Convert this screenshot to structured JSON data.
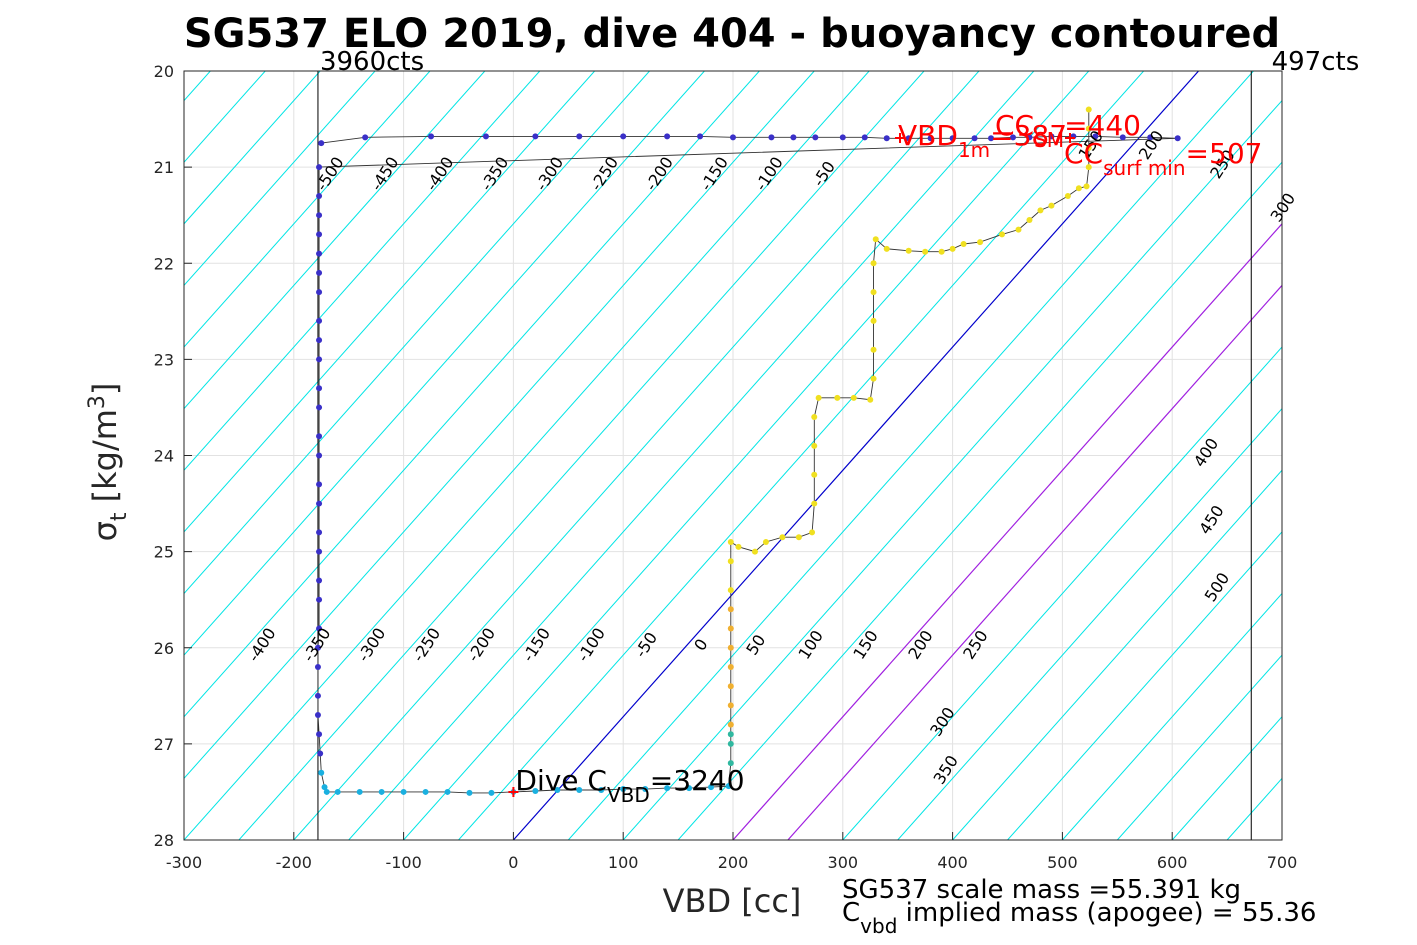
{
  "chart_data": {
    "type": "scatter",
    "title": "SG537 ELO 2019, dive 404 - buoyancy contoured",
    "xlabel": "VBD [cc]",
    "ylabel": {
      "main": "σ",
      "sub": "t",
      "units_pre": "[kg/m",
      "units_sup": "3",
      "units_post": "]"
    },
    "xlim": [
      -300,
      700
    ],
    "ylim": [
      20,
      28
    ],
    "y_reversed": true,
    "grid": true,
    "xticks": [
      "-300",
      "-200",
      "-100",
      "0",
      "100",
      "200",
      "300",
      "400",
      "500",
      "600",
      "700"
    ],
    "yticks": [
      "20",
      "21",
      "22",
      "23",
      "24",
      "25",
      "26",
      "27",
      "28"
    ],
    "contour_spacing": 50,
    "contour_levels_top": [
      "-500",
      "-450",
      "-400",
      "-350",
      "-300",
      "-250",
      "-200",
      "-150",
      "-100",
      "-50",
      "150",
      "200",
      "250",
      "300"
    ],
    "contour_levels_bottom": [
      "-400",
      "-350",
      "-300",
      "-250",
      "-200",
      "-150",
      "-100",
      "-50",
      "0",
      "50",
      "100",
      "150",
      "200",
      "250",
      "300",
      "350"
    ],
    "contour_levels_right": [
      "400",
      "450",
      "500"
    ],
    "vertical_lines": [
      {
        "vbd": -178,
        "label": "3960cts"
      },
      {
        "vbd": 672,
        "label": "497cts"
      }
    ],
    "annotations": {
      "dive_c_vbd": {
        "pre": "Dive C",
        "sub": "VBD",
        "post": "=3240",
        "vbd": 0,
        "sigma": 27.5
      },
      "vbd_1m": {
        "pre": "VBD",
        "sub": "1m",
        "post": "=387"
      },
      "cc_sm": {
        "pre": "CC",
        "sub": "SM",
        "post": "=440"
      },
      "cc_surf_min": {
        "pre": "CC",
        "sub": "surf min",
        "post": "=507"
      }
    },
    "series": [
      {
        "role": "descent",
        "color": "#3a30c8",
        "points": [
          [
            -175,
            20.75
          ],
          [
            -135,
            20.69
          ],
          [
            -75,
            20.68
          ],
          [
            -25,
            20.68
          ],
          [
            20,
            20.68
          ],
          [
            60,
            20.68
          ],
          [
            100,
            20.68
          ],
          [
            140,
            20.68
          ],
          [
            170,
            20.68
          ],
          [
            200,
            20.69
          ],
          [
            235,
            20.69
          ],
          [
            255,
            20.69
          ],
          [
            275,
            20.69
          ],
          [
            300,
            20.69
          ],
          [
            320,
            20.69
          ],
          [
            340,
            20.7
          ],
          [
            360,
            20.7
          ],
          [
            380,
            20.7
          ],
          [
            400,
            20.7
          ],
          [
            420,
            20.7
          ],
          [
            435,
            20.7
          ],
          [
            455,
            20.69
          ],
          [
            470,
            20.69
          ],
          [
            490,
            20.68
          ],
          [
            510,
            20.68
          ],
          [
            530,
            20.68
          ],
          [
            555,
            20.69
          ],
          [
            580,
            20.69
          ],
          [
            605,
            20.7
          ],
          [
            -177,
            21.0
          ],
          [
            -177,
            21.3
          ],
          [
            -177,
            21.5
          ],
          [
            -177,
            21.7
          ],
          [
            -177,
            21.9
          ],
          [
            -177,
            22.1
          ],
          [
            -177,
            22.3
          ],
          [
            -177,
            22.6
          ],
          [
            -177,
            22.8
          ],
          [
            -177,
            23.0
          ],
          [
            -177,
            23.3
          ],
          [
            -177,
            23.5
          ],
          [
            -177,
            23.8
          ],
          [
            -177,
            24.0
          ],
          [
            -177,
            24.3
          ],
          [
            -177,
            24.5
          ],
          [
            -177,
            24.8
          ],
          [
            -177,
            25.0
          ],
          [
            -177,
            25.3
          ],
          [
            -177,
            25.5
          ],
          [
            -177,
            25.8
          ],
          [
            -178,
            26.0
          ],
          [
            -178,
            26.2
          ],
          [
            -178,
            26.5
          ],
          [
            -178,
            26.7
          ],
          [
            -177,
            26.9
          ],
          [
            -176,
            27.1
          ]
        ]
      },
      {
        "role": "bottom",
        "color": "#1ab0e0",
        "points": [
          [
            -175,
            27.3
          ],
          [
            -172,
            27.45
          ],
          [
            -170,
            27.5
          ],
          [
            -160,
            27.5
          ],
          [
            -140,
            27.5
          ],
          [
            -120,
            27.5
          ],
          [
            -100,
            27.5
          ],
          [
            -80,
            27.5
          ],
          [
            -60,
            27.5
          ],
          [
            -40,
            27.51
          ],
          [
            -20,
            27.51
          ],
          [
            0,
            27.5
          ],
          [
            20,
            27.49
          ],
          [
            40,
            27.48
          ],
          [
            60,
            27.48
          ],
          [
            80,
            27.48
          ],
          [
            100,
            27.47
          ],
          [
            120,
            27.47
          ],
          [
            140,
            27.46
          ],
          [
            160,
            27.46
          ],
          [
            180,
            27.45
          ],
          [
            196,
            27.44
          ]
        ]
      },
      {
        "role": "climb-deep",
        "color": "#30b8a0",
        "points": [
          [
            198,
            27.2
          ],
          [
            198,
            27.0
          ],
          [
            198,
            26.9
          ]
        ]
      },
      {
        "role": "climb-mid",
        "color": "#f0b030",
        "points": [
          [
            198,
            26.8
          ],
          [
            198,
            26.6
          ],
          [
            198,
            26.4
          ],
          [
            198,
            26.2
          ],
          [
            198,
            26.0
          ],
          [
            198,
            25.8
          ],
          [
            198,
            25.6
          ]
        ]
      },
      {
        "role": "climb-shallow",
        "color": "#f0e020",
        "points": [
          [
            198,
            25.4
          ],
          [
            198,
            25.1
          ],
          [
            198,
            24.9
          ],
          [
            205,
            24.95
          ],
          [
            220,
            25.0
          ],
          [
            230,
            24.9
          ],
          [
            245,
            24.85
          ],
          [
            260,
            24.85
          ],
          [
            272,
            24.8
          ],
          [
            274,
            24.5
          ],
          [
            274,
            24.2
          ],
          [
            274,
            23.9
          ],
          [
            274,
            23.6
          ],
          [
            278,
            23.4
          ],
          [
            295,
            23.4
          ],
          [
            310,
            23.4
          ],
          [
            325,
            23.42
          ],
          [
            328,
            23.2
          ],
          [
            328,
            22.9
          ],
          [
            328,
            22.6
          ],
          [
            328,
            22.3
          ],
          [
            328,
            22.0
          ],
          [
            330,
            21.75
          ],
          [
            340,
            21.85
          ],
          [
            360,
            21.87
          ],
          [
            375,
            21.88
          ],
          [
            390,
            21.88
          ],
          [
            400,
            21.85
          ],
          [
            410,
            21.8
          ],
          [
            425,
            21.78
          ],
          [
            445,
            21.7
          ],
          [
            460,
            21.65
          ],
          [
            470,
            21.55
          ],
          [
            480,
            21.45
          ],
          [
            490,
            21.4
          ],
          [
            505,
            21.3
          ],
          [
            515,
            21.22
          ],
          [
            522,
            21.2
          ],
          [
            524,
            21.0
          ],
          [
            524,
            20.8
          ],
          [
            524,
            20.6
          ],
          [
            524,
            20.4
          ]
        ]
      }
    ]
  },
  "footer": {
    "scale_mass": "SG537 scale mass =55.391 kg",
    "implied_pre": "C",
    "implied_sub": "vbd",
    "implied_post": " implied mass (apogee) = 55.36"
  }
}
